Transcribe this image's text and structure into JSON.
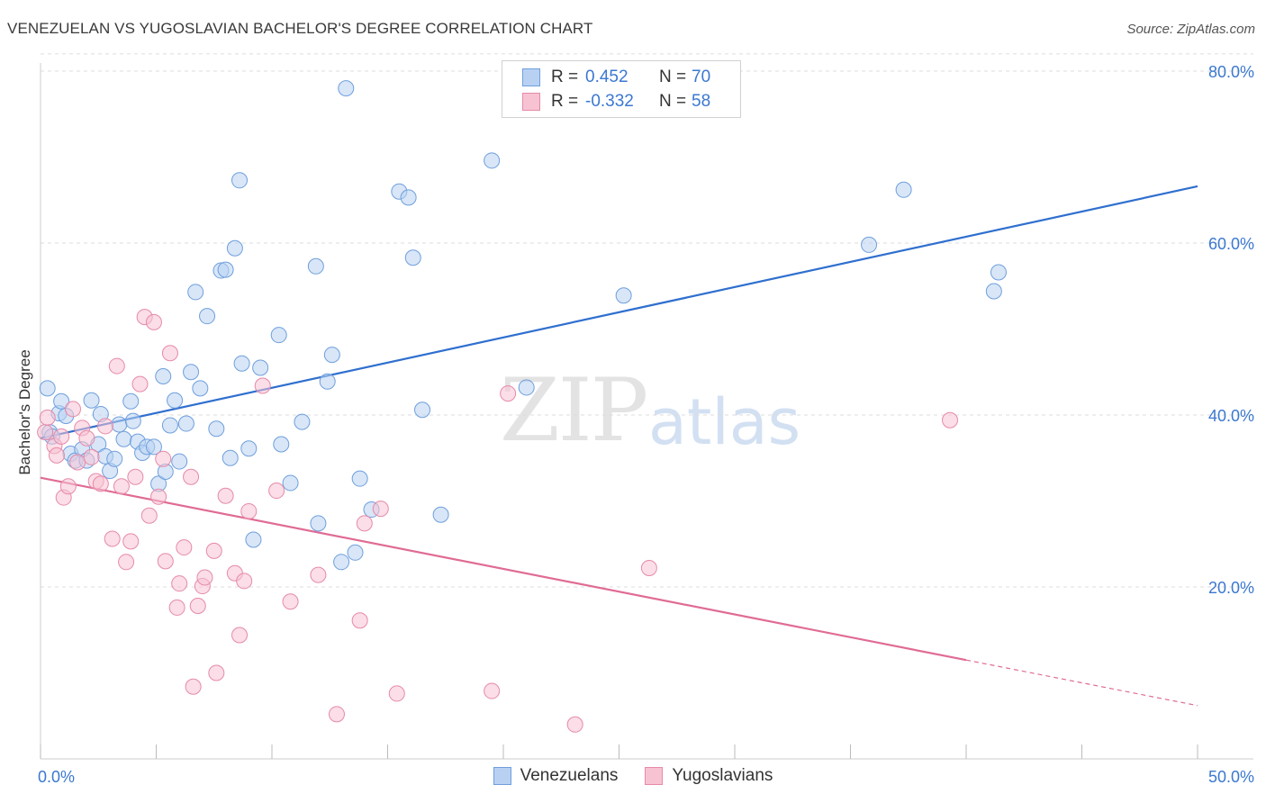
{
  "title": "VENEZUELAN VS YUGOSLAVIAN BACHELOR'S DEGREE CORRELATION CHART",
  "source": "Source: ZipAtlas.com",
  "watermark": {
    "zip": "ZIP",
    "atlas": "atlas"
  },
  "legend": {
    "rows": [
      {
        "r_label": "R =",
        "r_value": "0.452",
        "n_label": "N =",
        "n_value": "70"
      },
      {
        "r_label": "R =",
        "r_value": "-0.332",
        "n_label": "N =",
        "n_value": "58"
      }
    ]
  },
  "bottom_legend": {
    "series1": "Venezuelans",
    "series2": "Yugoslavians"
  },
  "colors": {
    "blue_fill": "#b8d1f3",
    "blue_stroke": "#6f9fdc",
    "blue_line": "#2f6fcf",
    "pink_fill": "#f7c3d3",
    "pink_stroke": "#e68aa8",
    "pink_line": "#e06b95",
    "tick_label": "#3b78d0",
    "grid": "#dddddd"
  },
  "chart_data": {
    "type": "scatter",
    "title": "VENEZUELAN VS YUGOSLAVIAN BACHELOR'S DEGREE CORRELATION CHART",
    "xlabel": "",
    "ylabel": "Bachelor's Degree",
    "xlim": [
      0,
      50
    ],
    "ylim": [
      0,
      82
    ],
    "x_tick_labels": [
      "0.0%",
      "50.0%"
    ],
    "y_ticks": [
      20,
      40,
      60,
      80
    ],
    "y_tick_labels": [
      "20.0%",
      "40.0%",
      "60.0%",
      "80.0%"
    ],
    "grid": true,
    "legend_placement": "top-center",
    "series": [
      {
        "name": "Venezuelans",
        "r": 0.452,
        "n": 70,
        "trend": {
          "x": [
            0,
            50
          ],
          "y": [
            37.3,
            66.6
          ]
        },
        "points": [
          [
            0.3,
            43.1
          ],
          [
            0.4,
            38.0
          ],
          [
            0.5,
            37.5
          ],
          [
            0.8,
            40.2
          ],
          [
            0.9,
            41.6
          ],
          [
            1.1,
            39.9
          ],
          [
            1.3,
            35.5
          ],
          [
            1.5,
            34.7
          ],
          [
            1.8,
            36.0
          ],
          [
            2.0,
            34.7
          ],
          [
            2.2,
            41.7
          ],
          [
            2.5,
            36.6
          ],
          [
            2.6,
            40.1
          ],
          [
            2.8,
            35.2
          ],
          [
            3.0,
            33.5
          ],
          [
            3.2,
            34.9
          ],
          [
            3.4,
            38.9
          ],
          [
            3.6,
            37.2
          ],
          [
            3.9,
            41.6
          ],
          [
            4.0,
            39.3
          ],
          [
            4.2,
            36.9
          ],
          [
            4.4,
            35.6
          ],
          [
            4.6,
            36.3
          ],
          [
            4.9,
            36.3
          ],
          [
            5.1,
            32.0
          ],
          [
            5.3,
            44.5
          ],
          [
            5.4,
            33.4
          ],
          [
            5.6,
            38.8
          ],
          [
            5.8,
            41.7
          ],
          [
            6.0,
            34.6
          ],
          [
            6.3,
            39.0
          ],
          [
            6.5,
            45.0
          ],
          [
            6.7,
            54.3
          ],
          [
            6.9,
            43.1
          ],
          [
            7.2,
            51.5
          ],
          [
            7.6,
            38.4
          ],
          [
            7.8,
            56.8
          ],
          [
            8.0,
            56.9
          ],
          [
            8.2,
            35.0
          ],
          [
            8.4,
            59.4
          ],
          [
            8.6,
            67.3
          ],
          [
            8.7,
            46.0
          ],
          [
            9.0,
            36.1
          ],
          [
            9.2,
            25.5
          ],
          [
            9.5,
            45.5
          ],
          [
            10.3,
            49.3
          ],
          [
            10.4,
            36.6
          ],
          [
            10.8,
            32.1
          ],
          [
            11.3,
            39.2
          ],
          [
            11.9,
            57.3
          ],
          [
            12.0,
            27.4
          ],
          [
            12.4,
            43.9
          ],
          [
            12.6,
            47.0
          ],
          [
            13.0,
            22.9
          ],
          [
            13.2,
            78.0
          ],
          [
            13.6,
            24.0
          ],
          [
            13.8,
            32.6
          ],
          [
            14.3,
            29.0
          ],
          [
            15.5,
            66.0
          ],
          [
            15.9,
            65.3
          ],
          [
            16.1,
            58.3
          ],
          [
            16.5,
            40.6
          ],
          [
            17.3,
            28.4
          ],
          [
            19.5,
            69.6
          ],
          [
            21.0,
            43.2
          ],
          [
            25.2,
            53.9
          ],
          [
            35.8,
            59.8
          ],
          [
            37.3,
            66.2
          ],
          [
            41.2,
            54.4
          ],
          [
            41.4,
            56.6
          ]
        ]
      },
      {
        "name": "Yugoslavians",
        "r": -0.332,
        "n": 58,
        "trend": {
          "x": [
            0,
            40
          ],
          "y": [
            32.7,
            11.5
          ]
        },
        "trend_dashed": {
          "x": [
            40,
            50
          ],
          "y": [
            11.5,
            6.2
          ]
        },
        "points": [
          [
            0.2,
            38.0
          ],
          [
            0.3,
            39.7
          ],
          [
            0.6,
            36.4
          ],
          [
            0.7,
            35.3
          ],
          [
            0.9,
            37.5
          ],
          [
            1.0,
            30.4
          ],
          [
            1.2,
            31.7
          ],
          [
            1.4,
            40.7
          ],
          [
            1.6,
            34.5
          ],
          [
            1.8,
            38.5
          ],
          [
            2.0,
            37.3
          ],
          [
            2.2,
            35.1
          ],
          [
            2.4,
            32.3
          ],
          [
            2.6,
            32.0
          ],
          [
            2.8,
            38.7
          ],
          [
            3.1,
            25.6
          ],
          [
            3.3,
            45.7
          ],
          [
            3.5,
            31.7
          ],
          [
            3.7,
            22.9
          ],
          [
            3.9,
            25.3
          ],
          [
            4.1,
            32.8
          ],
          [
            4.3,
            43.6
          ],
          [
            4.5,
            51.4
          ],
          [
            4.7,
            28.3
          ],
          [
            4.9,
            50.8
          ],
          [
            5.1,
            30.5
          ],
          [
            5.3,
            34.9
          ],
          [
            5.4,
            23.0
          ],
          [
            5.6,
            47.2
          ],
          [
            5.9,
            17.6
          ],
          [
            6.0,
            20.4
          ],
          [
            6.2,
            24.6
          ],
          [
            6.5,
            32.8
          ],
          [
            6.6,
            8.4
          ],
          [
            6.8,
            17.8
          ],
          [
            7.0,
            20.1
          ],
          [
            7.1,
            21.1
          ],
          [
            7.5,
            24.2
          ],
          [
            7.6,
            10.0
          ],
          [
            8.0,
            30.6
          ],
          [
            8.4,
            21.6
          ],
          [
            8.6,
            14.4
          ],
          [
            8.8,
            20.7
          ],
          [
            9.0,
            28.8
          ],
          [
            9.6,
            43.4
          ],
          [
            10.2,
            31.2
          ],
          [
            10.8,
            18.3
          ],
          [
            12.0,
            21.4
          ],
          [
            12.8,
            5.2
          ],
          [
            13.8,
            16.1
          ],
          [
            14.0,
            27.4
          ],
          [
            14.7,
            29.1
          ],
          [
            15.4,
            7.6
          ],
          [
            19.5,
            7.9
          ],
          [
            20.2,
            42.5
          ],
          [
            23.1,
            4.0
          ],
          [
            26.3,
            22.2
          ],
          [
            39.3,
            39.4
          ]
        ]
      }
    ]
  }
}
